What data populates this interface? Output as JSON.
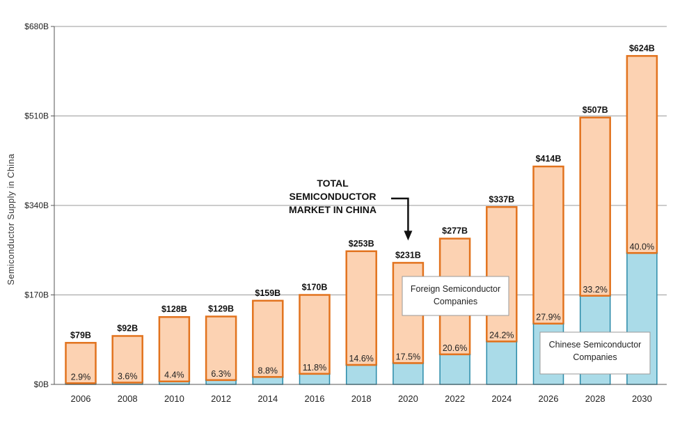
{
  "chart_data": {
    "type": "bar",
    "stacked": true,
    "categories": [
      "2006",
      "2008",
      "2010",
      "2012",
      "2014",
      "2016",
      "2018",
      "2020",
      "2022",
      "2024",
      "2026",
      "2028",
      "2030"
    ],
    "totals": [
      79,
      92,
      128,
      129,
      159,
      170,
      253,
      231,
      277,
      337,
      414,
      507,
      624
    ],
    "total_labels": [
      "$79B",
      "$92B",
      "$128B",
      "$129B",
      "$159B",
      "$170B",
      "$253B",
      "$231B",
      "$277B",
      "$337B",
      "$414B",
      "$507B",
      "$624B"
    ],
    "chinese_share_pct": [
      2.9,
      3.6,
      4.4,
      6.3,
      8.8,
      11.8,
      14.6,
      17.5,
      20.6,
      24.2,
      27.9,
      33.2,
      40.0
    ],
    "share_labels": [
      "2.9%",
      "3.6%",
      "4.4%",
      "6.3%",
      "8.8%",
      "11.8%",
      "14.6%",
      "17.5%",
      "20.6%",
      "24.2%",
      "27.9%",
      "33.2%",
      "40.0%"
    ],
    "series": [
      {
        "name": "Chinese Semiconductor Companies",
        "color": "#aadbe8",
        "border": "#2a8aa8"
      },
      {
        "name": "Foreign Semiconductor Companies",
        "color": "#fcd2b2",
        "border": "#e2731e"
      }
    ],
    "ylabel": "Semiconductor Supply in China",
    "ylim": [
      0,
      680
    ],
    "yticks": [
      0,
      170,
      340,
      510,
      680
    ],
    "ytick_labels": [
      "$0B",
      "$170B",
      "$340B",
      "$510B",
      "$680B"
    ],
    "grid": true,
    "annotation": {
      "lines": [
        "TOTAL",
        "SEMICONDUCTOR",
        "MARKET IN CHINA"
      ],
      "target": "2020"
    },
    "legend": {
      "foreign": {
        "lines": [
          "Foreign Semiconductor",
          "Companies"
        ]
      },
      "chinese": {
        "lines": [
          "Chinese Semiconductor",
          "Companies"
        ]
      }
    }
  }
}
